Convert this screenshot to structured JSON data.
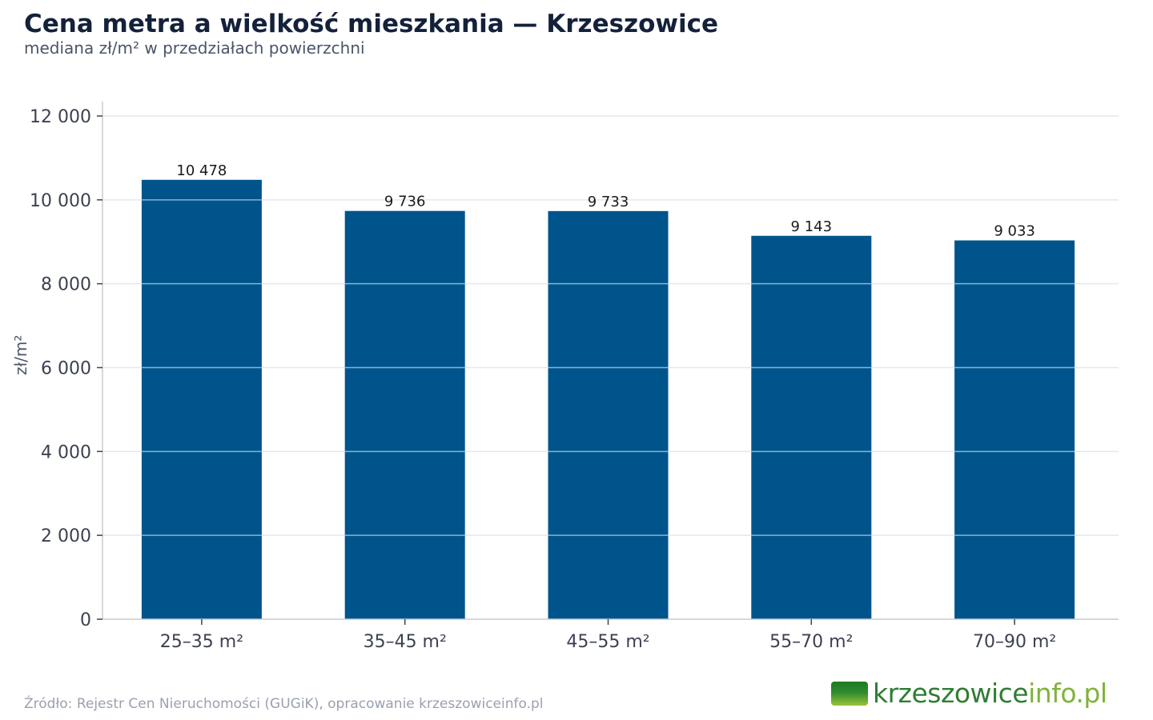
{
  "header": {
    "title": "Cena metra a wielkość mieszkania — Krzeszowice",
    "subtitle": "mediana zł/m² w przedziałach powierzchni"
  },
  "footer": {
    "source": "Źródło: Rejestr Cen Nieruchomości (GUGiK), opracowanie krzeszowiceinfo.pl"
  },
  "logo": {
    "part1": "krzeszowice",
    "part2": "info.pl",
    "color1": "#2f7d32",
    "color2": "#7fb33a"
  },
  "chart_data": {
    "type": "bar",
    "title": "Cena metra a wielkość mieszkania — Krzeszowice",
    "subtitle": "mediana zł/m² w przedziałach powierzchni",
    "xlabel": "",
    "ylabel": "zł/m²",
    "categories": [
      "25–35 m²",
      "35–45 m²",
      "45–55 m²",
      "55–70 m²",
      "70–90 m²"
    ],
    "values": [
      10478,
      9736,
      9733,
      9143,
      9033
    ],
    "value_labels": [
      "10 478",
      "9 736",
      "9 733",
      "9 143",
      "9 033"
    ],
    "ylim": [
      0,
      12000
    ],
    "yticks": [
      0,
      2000,
      4000,
      6000,
      8000,
      10000,
      12000
    ],
    "ytick_labels": [
      "0",
      "2 000",
      "4 000",
      "6 000",
      "8 000",
      "10 000",
      "12 000"
    ],
    "grid": true,
    "bar_color": "#00548c",
    "grid_color": "#e5e7ea",
    "axis_color": "#c9ccd1"
  }
}
